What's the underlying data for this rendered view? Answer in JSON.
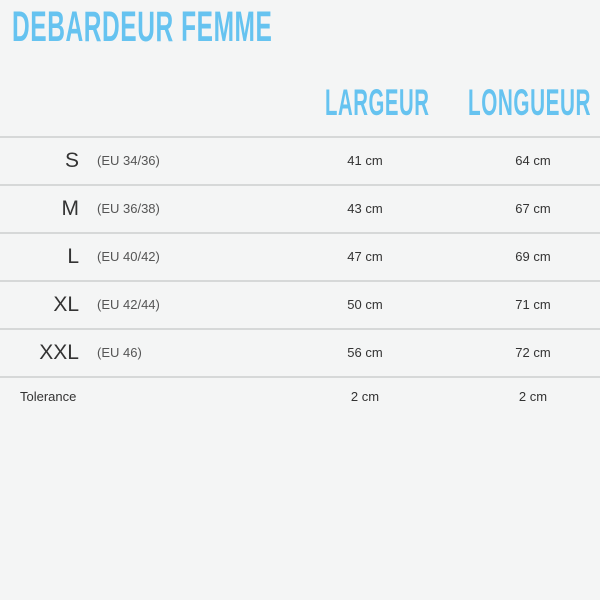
{
  "title": "DEBARDEUR FEMME",
  "columns": {
    "width": "LARGEUR",
    "length": "LONGUEUR"
  },
  "rows": [
    {
      "size": "S",
      "eu": "(EU 34/36)",
      "width": "41 cm",
      "length": "64 cm"
    },
    {
      "size": "M",
      "eu": "(EU 36/38)",
      "width": "43 cm",
      "length": "67 cm"
    },
    {
      "size": "L",
      "eu": "(EU 40/42)",
      "width": "47 cm",
      "length": "69 cm"
    },
    {
      "size": "XL",
      "eu": "(EU 42/44)",
      "width": "50 cm",
      "length": "71 cm"
    },
    {
      "size": "XXL",
      "eu": "(EU 46)",
      "width": "56 cm",
      "length": "72 cm"
    }
  ],
  "tolerance": {
    "label": "Tolerance",
    "width": "2 cm",
    "length": "2 cm"
  },
  "colors": {
    "accent": "#66c3f0",
    "background": "#f4f5f5"
  }
}
